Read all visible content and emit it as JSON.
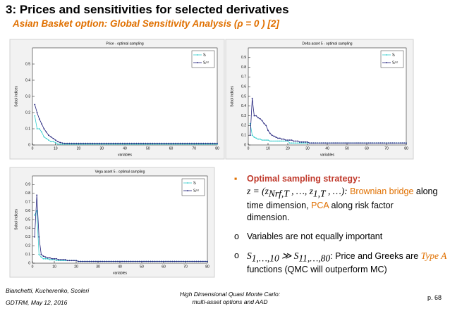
{
  "slide": {
    "title": "3: Prices and sensitivities for selected derivatives",
    "subtitle": "Asian Basket option: Global Sensitivity Analysis (ρ = 0 ) [2]",
    "bullets": [
      {
        "lines": [
          [
            {
              "text": "Optimal sampling strategy:",
              "color": "#c0392b",
              "bold": true
            }
          ],
          [
            {
              "text": "z = (z",
              "math": true
            },
            {
              "text": "Nrf,T",
              "math": true,
              "sub": true
            },
            {
              "text": " , …, z",
              "math": true
            },
            {
              "text": "1,T",
              "math": true,
              "sub": true
            },
            {
              "text": " , …): ",
              "math": true
            },
            {
              "text": "Brownian bridge",
              "color": "#e07000"
            },
            {
              "text": " along"
            }
          ],
          [
            {
              "text": "time dimension, "
            },
            {
              "text": "PCA",
              "color": "#e07000"
            },
            {
              "text": " along risk factor"
            }
          ],
          [
            {
              "text": "dimension."
            }
          ]
        ]
      },
      {
        "lines": [
          [
            {
              "text": "Variables are not equally important"
            }
          ]
        ]
      },
      {
        "lines": [
          [
            {
              "text": "S",
              "math": true
            },
            {
              "text": "1,…,10",
              "math": true,
              "sub": true
            },
            {
              "text": " ≫ S",
              "math": true
            },
            {
              "text": "11,…,80",
              "math": true,
              "sub": true
            },
            {
              "text": ": Price and Greeks are "
            },
            {
              "text": "Type A",
              "color": "#e07000",
              "math": true
            }
          ],
          [
            {
              "text": "functions (QMC will outperform MC)"
            }
          ]
        ]
      }
    ],
    "footer": {
      "authors": "Bianchetti, Kucherenko, Scoleri",
      "event": "GDTRM, May 12, 2016",
      "topic1": "High Dimensional Quasi Monte Carlo:",
      "topic2": "multi-asset options and AAD",
      "page": "p. 68"
    }
  },
  "chart_data": [
    {
      "type": "line",
      "title": "Price - optimal sampling",
      "xlabel": "variables",
      "ylabel": "Sobol indices",
      "xlim": [
        0,
        80
      ],
      "xticks": [
        0,
        10,
        20,
        30,
        40,
        50,
        60,
        70,
        80
      ],
      "ylim": [
        0,
        0.6
      ],
      "yticks": [
        0,
        0.1,
        0.2,
        0.3,
        0.4,
        0.5
      ],
      "legend": "upper right",
      "x": [
        1,
        2,
        3,
        4,
        5,
        6,
        7,
        8,
        9,
        10,
        11,
        12,
        13,
        14,
        15,
        16,
        17,
        18,
        19,
        20,
        21,
        22,
        23,
        24,
        25,
        26,
        27,
        28,
        29,
        30,
        31,
        32,
        33,
        34,
        35,
        36,
        37,
        38,
        39,
        40,
        41,
        42,
        43,
        44,
        45,
        46,
        47,
        48,
        49,
        50,
        51,
        52,
        53,
        54,
        55,
        56,
        57,
        58,
        59,
        60,
        61,
        62,
        63,
        64,
        65,
        66,
        67,
        68,
        69,
        70,
        71,
        72,
        73,
        74,
        75,
        76,
        77,
        78,
        79,
        80
      ],
      "series": [
        {
          "name": "Sᵢ",
          "color": "#33cccc",
          "values": [
            0.18,
            0.1,
            0.1,
            0.08,
            0.05,
            0.04,
            0.03,
            0.02,
            0.02,
            0.015,
            0.005,
            0.005,
            0.005,
            0.005,
            0.005,
            0.005,
            0.005,
            0.005,
            0.005,
            0.005,
            0.005,
            0.005,
            0.005,
            0.005,
            0.005,
            0.005,
            0.005,
            0.005,
            0.005,
            0.005,
            0.005,
            0.005,
            0.005,
            0.005,
            0.005,
            0.005,
            0.005,
            0.005,
            0.005,
            0.005,
            0.005,
            0.005,
            0.005,
            0.005,
            0.005,
            0.005,
            0.005,
            0.005,
            0.005,
            0.005,
            0.005,
            0.005,
            0.005,
            0.005,
            0.005,
            0.005,
            0.005,
            0.005,
            0.005,
            0.005,
            0.005,
            0.005,
            0.005,
            0.005,
            0.005,
            0.005,
            0.005,
            0.005,
            0.005,
            0.005,
            0.005,
            0.005,
            0.005,
            0.005,
            0.005,
            0.005,
            0.005,
            0.005,
            0.005,
            0.005
          ]
        },
        {
          "name": "Sᵢᵗᵒᵗ",
          "color": "#1f1f7a",
          "values": [
            0.25,
            0.2,
            0.16,
            0.13,
            0.1,
            0.08,
            0.06,
            0.05,
            0.04,
            0.03,
            0.02,
            0.015,
            0.012,
            0.01,
            0.01,
            0.01,
            0.01,
            0.01,
            0.01,
            0.01,
            0.01,
            0.01,
            0.01,
            0.01,
            0.01,
            0.01,
            0.01,
            0.01,
            0.01,
            0.01,
            0.01,
            0.01,
            0.01,
            0.01,
            0.01,
            0.01,
            0.01,
            0.01,
            0.01,
            0.01,
            0.01,
            0.01,
            0.01,
            0.01,
            0.01,
            0.01,
            0.01,
            0.01,
            0.01,
            0.01,
            0.01,
            0.01,
            0.01,
            0.01,
            0.01,
            0.01,
            0.01,
            0.01,
            0.01,
            0.01,
            0.01,
            0.01,
            0.01,
            0.01,
            0.01,
            0.01,
            0.01,
            0.01,
            0.01,
            0.01,
            0.01,
            0.01,
            0.01,
            0.01,
            0.01,
            0.01,
            0.01,
            0.01,
            0.01,
            0.01
          ]
        }
      ]
    },
    {
      "type": "line",
      "title": "Delta asset 5 - optimal sampling",
      "xlabel": "variables",
      "ylabel": "Sobol indices",
      "xlim": [
        0,
        80
      ],
      "xticks": [
        0,
        10,
        20,
        30,
        40,
        50,
        60,
        70,
        80
      ],
      "ylim": [
        0,
        1
      ],
      "yticks": [
        0,
        0.1,
        0.2,
        0.3,
        0.4,
        0.5,
        0.6,
        0.7,
        0.8,
        0.9
      ],
      "legend": "upper right",
      "x": [
        1,
        2,
        3,
        4,
        5,
        6,
        7,
        8,
        9,
        10,
        11,
        12,
        13,
        14,
        15,
        16,
        17,
        18,
        19,
        20,
        21,
        22,
        23,
        24,
        25,
        26,
        27,
        28,
        29,
        30,
        31,
        32,
        33,
        34,
        35,
        36,
        37,
        38,
        39,
        40,
        41,
        42,
        43,
        44,
        45,
        46,
        47,
        48,
        49,
        50,
        51,
        52,
        53,
        54,
        55,
        56,
        57,
        58,
        59,
        60,
        61,
        62,
        63,
        64,
        65,
        66,
        67,
        68,
        69,
        70,
        71,
        72,
        73,
        74,
        75,
        76,
        77,
        78,
        79,
        80
      ],
      "series": [
        {
          "name": "Sᵢ",
          "color": "#33cccc",
          "values": [
            0.22,
            0.1,
            0.08,
            0.07,
            0.06,
            0.06,
            0.05,
            0.05,
            0.05,
            0.05,
            0.04,
            0.04,
            0.04,
            0.04,
            0.04,
            0.04,
            0.04,
            0.04,
            0.04,
            0.04,
            0.02,
            0.02,
            0.02,
            0.02,
            0.02,
            0.02,
            0.02,
            0.02,
            0.02,
            0.02,
            0.02,
            0.02,
            0.02,
            0.02,
            0.02,
            0.02,
            0.02,
            0.02,
            0.02,
            0.02,
            0.02,
            0.02,
            0.02,
            0.02,
            0.02,
            0.02,
            0.02,
            0.02,
            0.02,
            0.02,
            0.02,
            0.02,
            0.02,
            0.02,
            0.02,
            0.02,
            0.02,
            0.02,
            0.02,
            0.02,
            0.02,
            0.02,
            0.02,
            0.02,
            0.02,
            0.02,
            0.02,
            0.02,
            0.02,
            0.02,
            0.02,
            0.02,
            0.02,
            0.02,
            0.02,
            0.02,
            0.02,
            0.02,
            0.02,
            0.02
          ]
        },
        {
          "name": "Sᵢᵗᵒᵗ",
          "color": "#1f1f7a",
          "values": [
            0.1,
            0.48,
            0.3,
            0.3,
            0.28,
            0.27,
            0.25,
            0.22,
            0.2,
            0.15,
            0.12,
            0.1,
            0.09,
            0.08,
            0.07,
            0.07,
            0.06,
            0.06,
            0.05,
            0.05,
            0.05,
            0.05,
            0.04,
            0.04,
            0.04,
            0.03,
            0.03,
            0.03,
            0.03,
            0.03,
            0.02,
            0.02,
            0.02,
            0.02,
            0.02,
            0.02,
            0.02,
            0.02,
            0.02,
            0.02,
            0.02,
            0.02,
            0.02,
            0.02,
            0.02,
            0.02,
            0.02,
            0.02,
            0.02,
            0.02,
            0.02,
            0.02,
            0.02,
            0.02,
            0.02,
            0.02,
            0.02,
            0.02,
            0.02,
            0.02,
            0.02,
            0.02,
            0.02,
            0.02,
            0.02,
            0.02,
            0.02,
            0.02,
            0.02,
            0.02,
            0.02,
            0.02,
            0.02,
            0.02,
            0.02,
            0.02,
            0.02,
            0.02,
            0.02,
            0.02
          ]
        }
      ]
    },
    {
      "type": "line",
      "title": "Vega asset 5 - optimal sampling",
      "xlabel": "variables",
      "ylabel": "Sobol indices",
      "xlim": [
        0,
        80
      ],
      "xticks": [
        0,
        10,
        20,
        30,
        40,
        50,
        60,
        70,
        80
      ],
      "ylim": [
        0,
        1
      ],
      "yticks": [
        0,
        0.1,
        0.2,
        0.3,
        0.4,
        0.5,
        0.6,
        0.7,
        0.8,
        0.9
      ],
      "legend": "upper right",
      "x": [
        1,
        2,
        3,
        4,
        5,
        6,
        7,
        8,
        9,
        10,
        11,
        12,
        13,
        14,
        15,
        16,
        17,
        18,
        19,
        20,
        21,
        22,
        23,
        24,
        25,
        26,
        27,
        28,
        29,
        30,
        31,
        32,
        33,
        34,
        35,
        36,
        37,
        38,
        39,
        40,
        41,
        42,
        43,
        44,
        45,
        46,
        47,
        48,
        49,
        50,
        51,
        52,
        53,
        54,
        55,
        56,
        57,
        58,
        59,
        60,
        61,
        62,
        63,
        64,
        65,
        66,
        67,
        68,
        69,
        70,
        71,
        72,
        73,
        74,
        75,
        76,
        77,
        78,
        79,
        80
      ],
      "series": [
        {
          "name": "Sᵢ",
          "color": "#33cccc",
          "values": [
            0.55,
            0.6,
            0.1,
            0.07,
            0.05,
            0.05,
            0.05,
            0.04,
            0.04,
            0.04,
            0.03,
            0.03,
            0.03,
            0.03,
            0.03,
            0.03,
            0.03,
            0.03,
            0.03,
            0.03,
            0.02,
            0.02,
            0.02,
            0.02,
            0.02,
            0.02,
            0.02,
            0.02,
            0.02,
            0.02,
            0.02,
            0.02,
            0.02,
            0.02,
            0.02,
            0.02,
            0.02,
            0.02,
            0.02,
            0.02,
            0.02,
            0.02,
            0.02,
            0.02,
            0.02,
            0.02,
            0.02,
            0.02,
            0.02,
            0.02,
            0.02,
            0.02,
            0.02,
            0.02,
            0.02,
            0.02,
            0.02,
            0.02,
            0.02,
            0.02,
            0.02,
            0.02,
            0.02,
            0.02,
            0.02,
            0.02,
            0.02,
            0.02,
            0.02,
            0.02,
            0.02,
            0.02,
            0.02,
            0.02,
            0.02,
            0.02,
            0.02,
            0.02,
            0.02,
            0.02
          ]
        },
        {
          "name": "Sᵢᵗᵒᵗ",
          "color": "#1f1f7a",
          "values": [
            0.3,
            0.78,
            0.3,
            0.1,
            0.08,
            0.07,
            0.06,
            0.06,
            0.05,
            0.05,
            0.05,
            0.04,
            0.04,
            0.04,
            0.04,
            0.03,
            0.03,
            0.03,
            0.03,
            0.03,
            0.02,
            0.02,
            0.02,
            0.02,
            0.02,
            0.02,
            0.02,
            0.02,
            0.02,
            0.02,
            0.02,
            0.02,
            0.02,
            0.02,
            0.02,
            0.02,
            0.02,
            0.02,
            0.02,
            0.02,
            0.02,
            0.02,
            0.02,
            0.02,
            0.02,
            0.02,
            0.02,
            0.02,
            0.02,
            0.02,
            0.02,
            0.02,
            0.02,
            0.02,
            0.02,
            0.02,
            0.02,
            0.02,
            0.02,
            0.02,
            0.02,
            0.02,
            0.02,
            0.02,
            0.02,
            0.02,
            0.02,
            0.02,
            0.02,
            0.02,
            0.02,
            0.02,
            0.02,
            0.02,
            0.02,
            0.02,
            0.02,
            0.02,
            0.02,
            0.02
          ]
        }
      ]
    }
  ]
}
